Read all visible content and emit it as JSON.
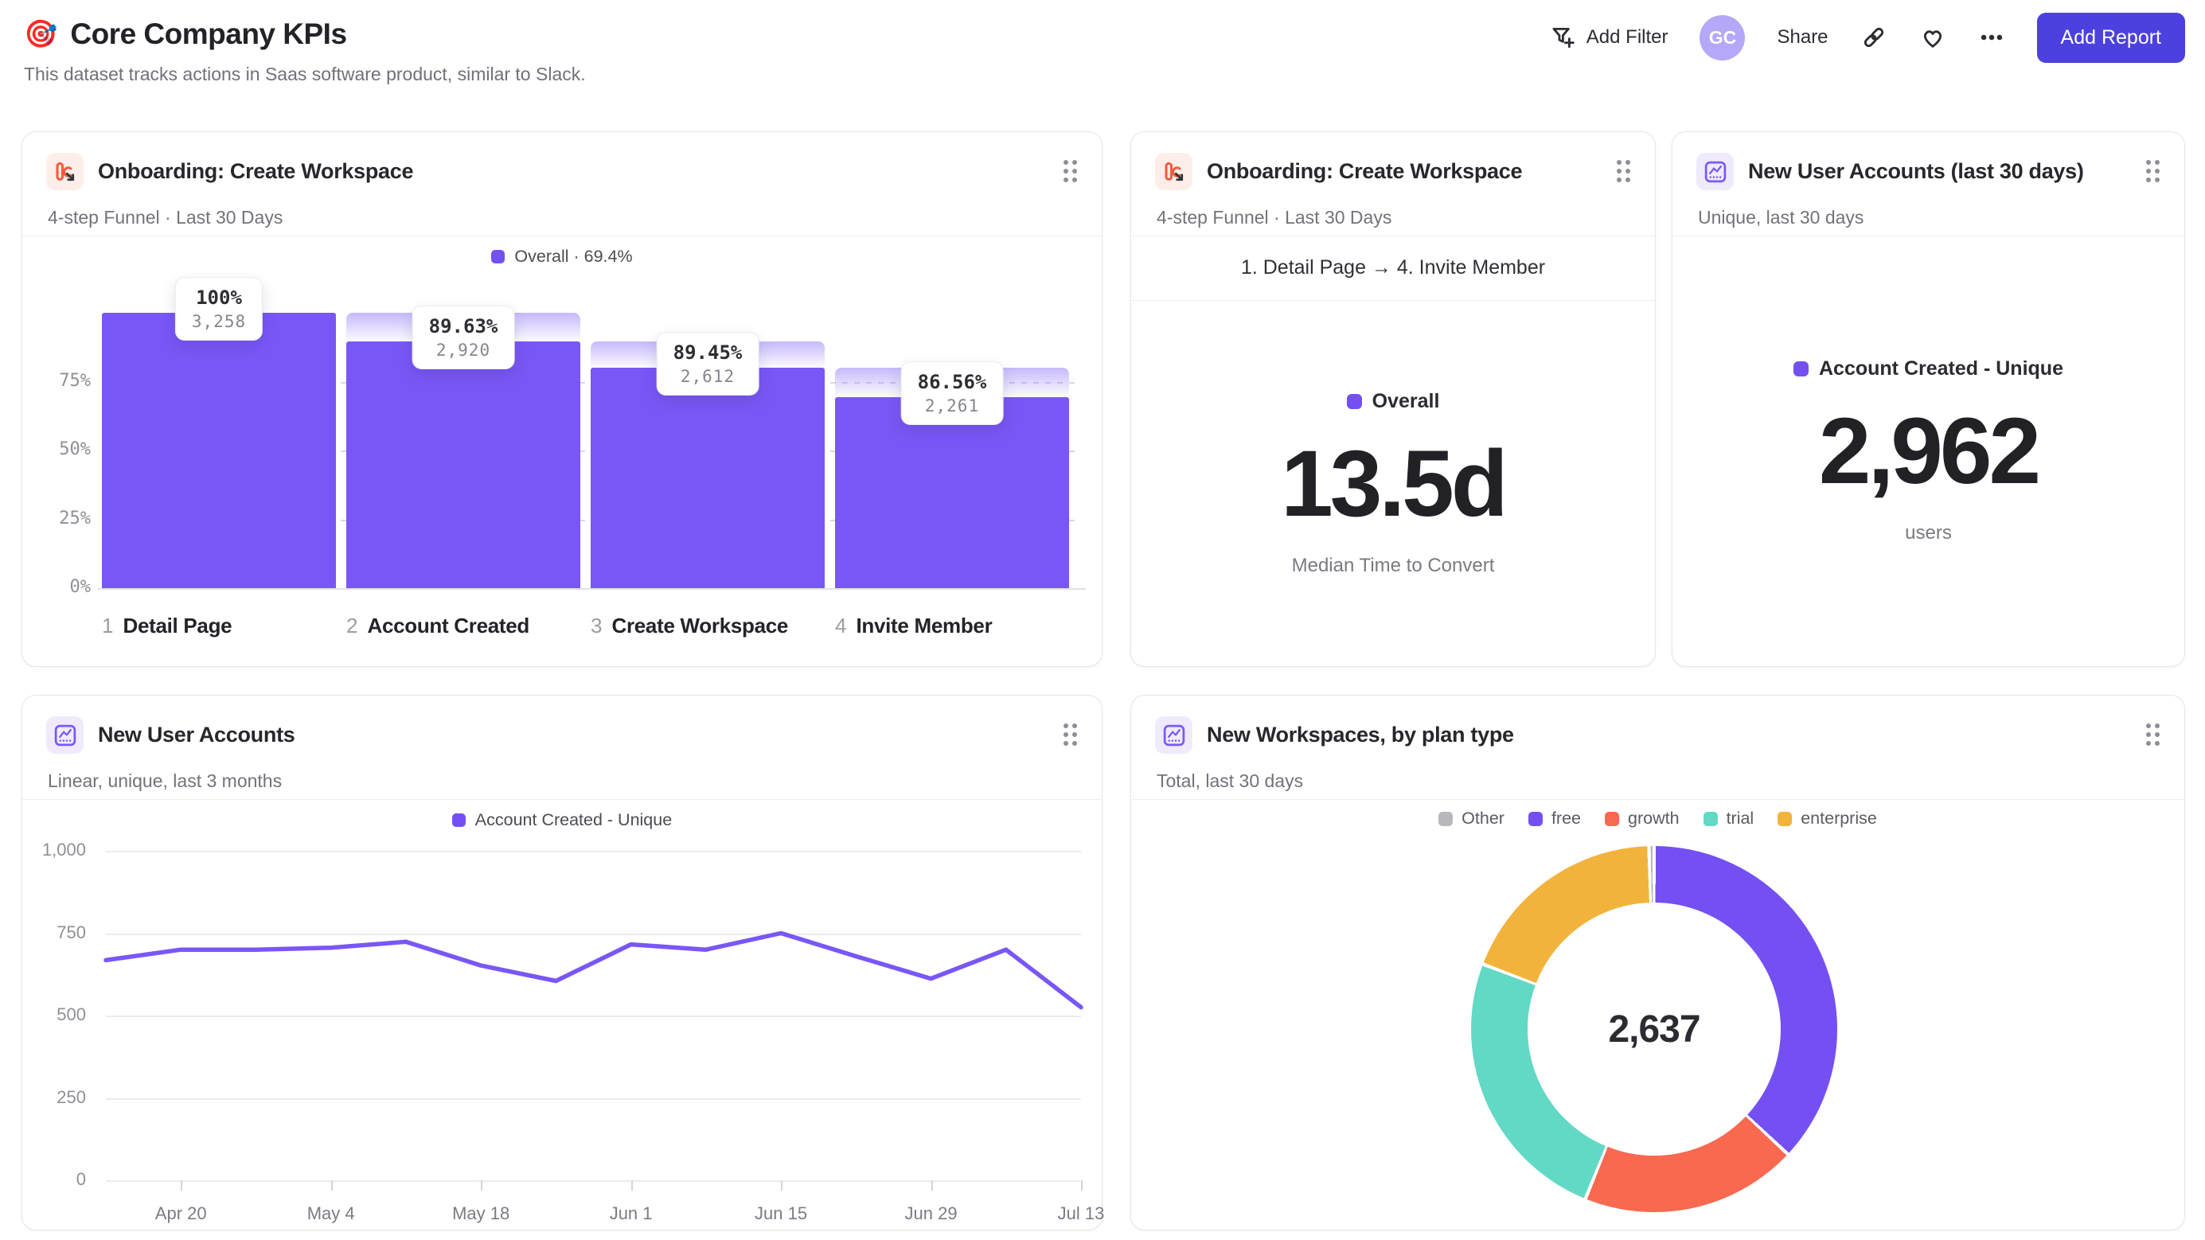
{
  "page": {
    "title": "Core Company KPIs",
    "title_icon": "🎯",
    "subtitle": "This dataset tracks actions in Saas software product, similar to Slack."
  },
  "toolbar": {
    "add_filter": "Add Filter",
    "avatar_initials": "GC",
    "share": "Share",
    "add_report": "Add Report"
  },
  "colors": {
    "accent_purple": "#7957f6",
    "legend_purple": "#7450f2",
    "button_indigo": "#4c40df",
    "avatar_lavender": "#b5a8f8",
    "funnel_icon_orange": "#f4593b",
    "gridline": "#ebebf0",
    "dashed_gridline": "#d8d8df"
  },
  "cards": {
    "funnel": {
      "title": "Onboarding: Create Workspace",
      "subtitle": "4-step Funnel · Last 30 Days"
    },
    "funnel_metric": {
      "title": "Onboarding: Create Workspace",
      "subtitle": "4-step Funnel · Last 30 Days"
    },
    "accounts_metric": {
      "title": "New User Accounts (last 30 days)",
      "subtitle": "Unique, last 30 days"
    },
    "accounts_line": {
      "title": "New User Accounts",
      "subtitle": "Linear, unique, last 3 months"
    },
    "workspaces_donut": {
      "title": "New Workspaces, by plan type",
      "subtitle": "Total, last 30 days"
    }
  },
  "chart_data": [
    {
      "type": "funnel",
      "title": "Onboarding: Create Workspace",
      "legend": "Overall · 69.4%",
      "overall_conversion_pct": 69.4,
      "yticks": [
        "0%",
        "25%",
        "50%",
        "75%"
      ],
      "ytick_values": [
        0,
        25,
        50,
        75
      ],
      "steps": [
        {
          "index": "1",
          "label": "Detail Page",
          "count": 3258,
          "count_label": "3,258",
          "pct_label": "100%",
          "conversion_from_previous_pct": 100
        },
        {
          "index": "2",
          "label": "Account Created",
          "count": 2920,
          "count_label": "2,920",
          "pct_label": "89.63%",
          "conversion_from_previous_pct": 89.63
        },
        {
          "index": "3",
          "label": "Create Workspace",
          "count": 2612,
          "count_label": "2,612",
          "pct_label": "89.45%",
          "conversion_from_previous_pct": 89.45
        },
        {
          "index": "4",
          "label": "Invite Member",
          "count": 2261,
          "count_label": "2,261",
          "pct_label": "86.56%",
          "conversion_from_previous_pct": 86.56
        }
      ]
    },
    {
      "type": "metric",
      "range": "1. Detail Page → 4. Invite Member",
      "series": "Overall",
      "value": "13.5d",
      "caption": "Median Time to Convert"
    },
    {
      "type": "metric",
      "series": "Account Created - Unique",
      "value": "2,962",
      "caption": "users"
    },
    {
      "type": "line",
      "series": [
        {
          "name": "Account Created - Unique",
          "values": [
            668,
            700,
            700,
            706,
            724,
            652,
            605,
            716,
            700,
            750,
            680,
            612,
            700,
            525
          ]
        }
      ],
      "x": [
        "Apr 13",
        "Apr 20",
        "Apr 27",
        "May 4",
        "May 11",
        "May 18",
        "May 25",
        "Jun 1",
        "Jun 8",
        "Jun 15",
        "Jun 22",
        "Jun 29",
        "Jul 6",
        "Jul 13"
      ],
      "x_tick_indices": [
        1,
        3,
        5,
        7,
        9,
        11,
        13
      ],
      "x_tick_labels": [
        "Apr 20",
        "May 4",
        "May 18",
        "Jun 1",
        "Jun 15",
        "Jun 29",
        "Jul 13"
      ],
      "ylim": [
        0,
        1000
      ],
      "yticks": [
        "0",
        "250",
        "500",
        "750",
        "1,000"
      ],
      "ytick_values": [
        0,
        250,
        500,
        750,
        1000
      ],
      "grid": true,
      "legend_position": "top"
    },
    {
      "type": "pie",
      "total": 2637,
      "total_label": "2,637",
      "segments": [
        {
          "label": "free",
          "value": 975,
          "color": "#7450f2"
        },
        {
          "label": "growth",
          "value": 505,
          "color": "#f8694f"
        },
        {
          "label": "trial",
          "value": 650,
          "color": "#62d9c4"
        },
        {
          "label": "enterprise",
          "value": 495,
          "color": "#f2b33d"
        },
        {
          "label": "Other",
          "value": 12,
          "color": "#b8b8bc"
        }
      ],
      "legend_order": [
        "Other",
        "free",
        "growth",
        "trial",
        "enterprise"
      ],
      "legend_position": "top"
    }
  ]
}
